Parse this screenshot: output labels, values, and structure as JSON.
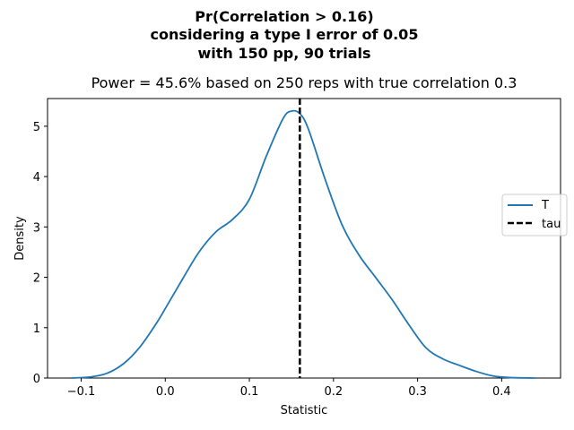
{
  "chart_data": {
    "type": "line",
    "title_lines": [
      "Pr(Correlation > 0.16)",
      "considering a type I error of 0.05",
      "with 150 pp, 90 trials"
    ],
    "subtitle": "Power = 45.6% based on 250 reps with true correlation 0.3",
    "xlabel": "Statistic",
    "ylabel": "Density",
    "xlim": [
      -0.14,
      0.47
    ],
    "ylim": [
      0,
      5.55
    ],
    "xticks": [
      -0.1,
      0.0,
      0.1,
      0.2,
      0.3,
      0.4
    ],
    "xtick_labels": [
      "−0.1",
      "0.0",
      "0.1",
      "0.2",
      "0.3",
      "0.4"
    ],
    "yticks": [
      0,
      1,
      2,
      3,
      4,
      5
    ],
    "ytick_labels": [
      "0",
      "1",
      "2",
      "3",
      "4",
      "5"
    ],
    "grid": false,
    "legend_position": "center-right",
    "series": [
      {
        "name": "T",
        "style": "solid",
        "color": "#1f77b4",
        "x": [
          -0.112,
          -0.09,
          -0.07,
          -0.05,
          -0.03,
          -0.01,
          0.0,
          0.02,
          0.04,
          0.06,
          0.08,
          0.1,
          0.12,
          0.14,
          0.15,
          0.16,
          0.17,
          0.19,
          0.21,
          0.23,
          0.25,
          0.27,
          0.29,
          0.31,
          0.33,
          0.35,
          0.37,
          0.39,
          0.41,
          0.44
        ],
        "y": [
          0.0,
          0.02,
          0.09,
          0.28,
          0.62,
          1.1,
          1.38,
          1.95,
          2.5,
          2.9,
          3.15,
          3.55,
          4.4,
          5.15,
          5.3,
          5.25,
          4.95,
          3.95,
          3.05,
          2.45,
          2.0,
          1.55,
          1.05,
          0.6,
          0.38,
          0.25,
          0.13,
          0.04,
          0.01,
          0.0
        ]
      },
      {
        "name": "tau",
        "style": "dashed",
        "color": "#000000",
        "x_value": 0.16
      }
    ]
  }
}
